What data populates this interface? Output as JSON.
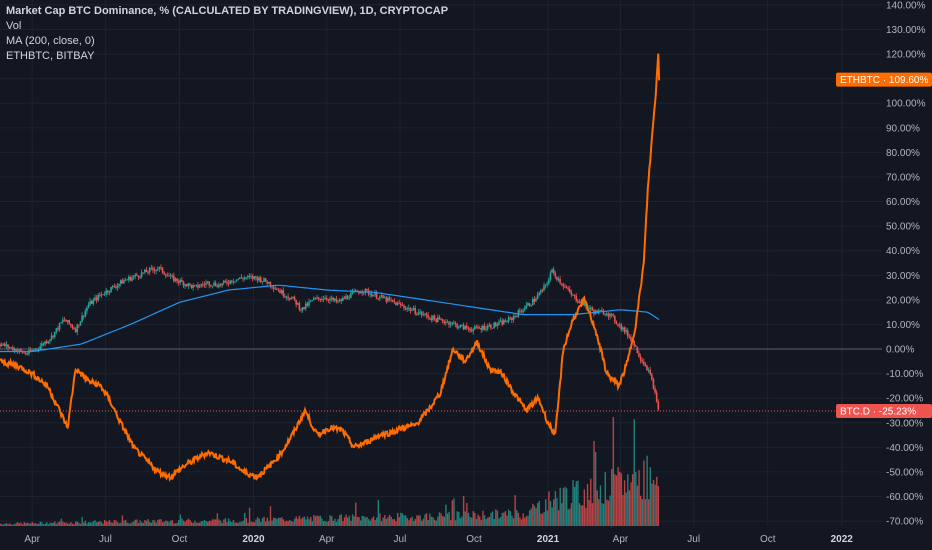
{
  "legend": {
    "title": "Market Cap BTC Dominance, % (CALCULATED BY TRADINGVIEW), 1D, CRYPTOCAP",
    "vol": "Vol",
    "ma": "MA (200, close, 0)",
    "ethbtc": "ETHBTC, BITBAY"
  },
  "colors": {
    "background": "#131722",
    "grid": "#1e222d",
    "up": "#26a69a",
    "down": "#ef5350",
    "ma": "#2196f3",
    "eth": "#ff6d00",
    "zero": "#5d606b",
    "btc_badge": "#ef5350"
  },
  "chart_data": {
    "type": "line",
    "y_ticks": [
      140,
      130,
      120,
      110,
      100,
      90,
      80,
      70,
      60,
      50,
      40,
      30,
      20,
      10,
      0,
      -10,
      -20,
      -30,
      -40,
      -50,
      -60,
      -70
    ],
    "y_tick_labels": [
      "140.00%",
      "130.00%",
      "120.00%",
      "110.00%",
      "100.00%",
      "90.00%",
      "80.00%",
      "70.00%",
      "60.00%",
      "50.00%",
      "40.00%",
      "30.00%",
      "20.00%",
      "10.00%",
      "0.00%",
      "-10.00%",
      "-20.00%",
      "-30.00%",
      "-40.00%",
      "-50.00%",
      "-60.00%",
      "-70.00%"
    ],
    "ylim": [
      -72,
      142
    ],
    "x_range": [
      "2019-02-20",
      "2022-02-20"
    ],
    "x_ticks": [
      {
        "label": "Apr",
        "date": "2019-04-01",
        "bold": false
      },
      {
        "label": "Jul",
        "date": "2019-07-01",
        "bold": false
      },
      {
        "label": "Oct",
        "date": "2019-10-01",
        "bold": false
      },
      {
        "label": "2020",
        "date": "2020-01-01",
        "bold": true
      },
      {
        "label": "Apr",
        "date": "2020-04-01",
        "bold": false
      },
      {
        "label": "Jul",
        "date": "2020-07-01",
        "bold": false
      },
      {
        "label": "Oct",
        "date": "2020-10-01",
        "bold": false
      },
      {
        "label": "2021",
        "date": "2021-01-01",
        "bold": true
      },
      {
        "label": "Apr",
        "date": "2021-04-01",
        "bold": false
      },
      {
        "label": "Jul",
        "date": "2021-07-01",
        "bold": false
      },
      {
        "label": "Oct",
        "date": "2021-10-01",
        "bold": false
      },
      {
        "label": "2022",
        "date": "2022-01-01",
        "bold": true
      }
    ],
    "badges": [
      {
        "label": "ETHBTC · 109.60%",
        "value": 109.6,
        "color": "#ff6d00"
      },
      {
        "label": "BTC.D · -25.23%",
        "value": -25.23,
        "color": "#ef5350"
      }
    ],
    "series": [
      {
        "name": "BTC.D",
        "kind": "candles",
        "points": [
          [
            "2019-02-20",
            2
          ],
          [
            "2019-03-10",
            0
          ],
          [
            "2019-03-25",
            -2
          ],
          [
            "2019-04-10",
            1
          ],
          [
            "2019-04-25",
            5
          ],
          [
            "2019-05-10",
            12
          ],
          [
            "2019-05-25",
            8
          ],
          [
            "2019-06-10",
            18
          ],
          [
            "2019-06-25",
            22
          ],
          [
            "2019-07-10",
            25
          ],
          [
            "2019-07-25",
            28
          ],
          [
            "2019-08-10",
            30
          ],
          [
            "2019-08-25",
            32
          ],
          [
            "2019-09-05",
            33
          ],
          [
            "2019-09-20",
            29
          ],
          [
            "2019-10-05",
            27
          ],
          [
            "2019-10-20",
            25
          ],
          [
            "2019-11-05",
            27
          ],
          [
            "2019-11-20",
            26
          ],
          [
            "2019-12-05",
            28
          ],
          [
            "2019-12-20",
            29
          ],
          [
            "2020-01-05",
            29
          ],
          [
            "2020-01-20",
            27
          ],
          [
            "2020-02-05",
            23
          ],
          [
            "2020-02-20",
            20
          ],
          [
            "2020-03-01",
            16
          ],
          [
            "2020-03-15",
            20
          ],
          [
            "2020-03-30",
            21
          ],
          [
            "2020-04-15",
            19
          ],
          [
            "2020-04-30",
            22
          ],
          [
            "2020-05-15",
            24
          ],
          [
            "2020-05-30",
            22
          ],
          [
            "2020-06-15",
            20
          ],
          [
            "2020-06-30",
            18
          ],
          [
            "2020-07-15",
            16
          ],
          [
            "2020-07-30",
            14
          ],
          [
            "2020-08-15",
            12
          ],
          [
            "2020-08-30",
            11
          ],
          [
            "2020-09-15",
            9
          ],
          [
            "2020-09-30",
            8
          ],
          [
            "2020-10-15",
            9
          ],
          [
            "2020-10-30",
            10
          ],
          [
            "2020-11-15",
            12
          ],
          [
            "2020-11-30",
            16
          ],
          [
            "2020-12-15",
            20
          ],
          [
            "2020-12-30",
            26
          ],
          [
            "2021-01-05",
            32
          ],
          [
            "2021-01-15",
            28
          ],
          [
            "2021-01-30",
            22
          ],
          [
            "2021-02-15",
            18
          ],
          [
            "2021-02-28",
            15
          ],
          [
            "2021-03-15",
            15
          ],
          [
            "2021-03-30",
            10
          ],
          [
            "2021-04-15",
            4
          ],
          [
            "2021-04-25",
            -3
          ],
          [
            "2021-05-05",
            -8
          ],
          [
            "2021-05-12",
            -15
          ],
          [
            "2021-05-16",
            -22
          ],
          [
            "2021-05-19",
            -25.23
          ]
        ]
      },
      {
        "name": "MA",
        "kind": "line",
        "points": [
          [
            "2019-02-20",
            -1
          ],
          [
            "2019-04-01",
            -1
          ],
          [
            "2019-06-01",
            2
          ],
          [
            "2019-08-01",
            10
          ],
          [
            "2019-10-01",
            19
          ],
          [
            "2019-12-01",
            24
          ],
          [
            "2020-02-01",
            26
          ],
          [
            "2020-04-01",
            24
          ],
          [
            "2020-06-01",
            23
          ],
          [
            "2020-08-01",
            20
          ],
          [
            "2020-10-01",
            17
          ],
          [
            "2020-12-01",
            14
          ],
          [
            "2021-02-01",
            14
          ],
          [
            "2021-04-01",
            16
          ],
          [
            "2021-05-05",
            15
          ],
          [
            "2021-05-19",
            12
          ]
        ]
      },
      {
        "name": "ETHBTC",
        "kind": "line",
        "points": [
          [
            "2019-02-20",
            -5
          ],
          [
            "2019-03-15",
            -7
          ],
          [
            "2019-04-01",
            -10
          ],
          [
            "2019-04-20",
            -15
          ],
          [
            "2019-05-05",
            -25
          ],
          [
            "2019-05-15",
            -32
          ],
          [
            "2019-05-25",
            -8
          ],
          [
            "2019-06-10",
            -13
          ],
          [
            "2019-06-25",
            -15
          ],
          [
            "2019-07-05",
            -20
          ],
          [
            "2019-07-20",
            -30
          ],
          [
            "2019-08-05",
            -40
          ],
          [
            "2019-08-20",
            -45
          ],
          [
            "2019-09-05",
            -50
          ],
          [
            "2019-09-20",
            -52
          ],
          [
            "2019-10-05",
            -48
          ],
          [
            "2019-10-20",
            -45
          ],
          [
            "2019-11-05",
            -42
          ],
          [
            "2019-11-20",
            -44
          ],
          [
            "2019-12-05",
            -46
          ],
          [
            "2019-12-20",
            -50
          ],
          [
            "2020-01-05",
            -52
          ],
          [
            "2020-01-20",
            -48
          ],
          [
            "2020-02-05",
            -42
          ],
          [
            "2020-02-20",
            -34
          ],
          [
            "2020-03-05",
            -25
          ],
          [
            "2020-03-20",
            -35
          ],
          [
            "2020-04-05",
            -32
          ],
          [
            "2020-04-20",
            -33
          ],
          [
            "2020-05-05",
            -40
          ],
          [
            "2020-05-20",
            -38
          ],
          [
            "2020-06-05",
            -35
          ],
          [
            "2020-06-20",
            -34
          ],
          [
            "2020-07-05",
            -32
          ],
          [
            "2020-07-20",
            -31
          ],
          [
            "2020-08-05",
            -25
          ],
          [
            "2020-08-20",
            -18
          ],
          [
            "2020-09-05",
            0
          ],
          [
            "2020-09-20",
            -5
          ],
          [
            "2020-10-05",
            3
          ],
          [
            "2020-10-20",
            -8
          ],
          [
            "2020-11-05",
            -10
          ],
          [
            "2020-11-20",
            -18
          ],
          [
            "2020-12-05",
            -25
          ],
          [
            "2020-12-20",
            -20
          ],
          [
            "2021-01-01",
            -30
          ],
          [
            "2021-01-10",
            -35
          ],
          [
            "2021-01-20",
            0
          ],
          [
            "2021-02-01",
            12
          ],
          [
            "2021-02-15",
            20
          ],
          [
            "2021-03-01",
            8
          ],
          [
            "2021-03-15",
            -10
          ],
          [
            "2021-03-30",
            -15
          ],
          [
            "2021-04-10",
            -5
          ],
          [
            "2021-04-20",
            10
          ],
          [
            "2021-04-30",
            35
          ],
          [
            "2021-05-05",
            65
          ],
          [
            "2021-05-10",
            85
          ],
          [
            "2021-05-15",
            105
          ],
          [
            "2021-05-18",
            120
          ],
          [
            "2021-05-19",
            109.6
          ]
        ]
      },
      {
        "name": "Vol",
        "kind": "volume",
        "points": [
          [
            "2019-03-01",
            1
          ],
          [
            "2019-06-01",
            1.5
          ],
          [
            "2019-09-01",
            2
          ],
          [
            "2019-12-01",
            2.2
          ],
          [
            "2020-03-01",
            3
          ],
          [
            "2020-06-01",
            3.5
          ],
          [
            "2020-09-01",
            4
          ],
          [
            "2020-12-01",
            5
          ],
          [
            "2021-01-15",
            12
          ],
          [
            "2021-03-01",
            14
          ],
          [
            "2021-04-15",
            18
          ],
          [
            "2021-05-19",
            22
          ]
        ]
      }
    ]
  }
}
